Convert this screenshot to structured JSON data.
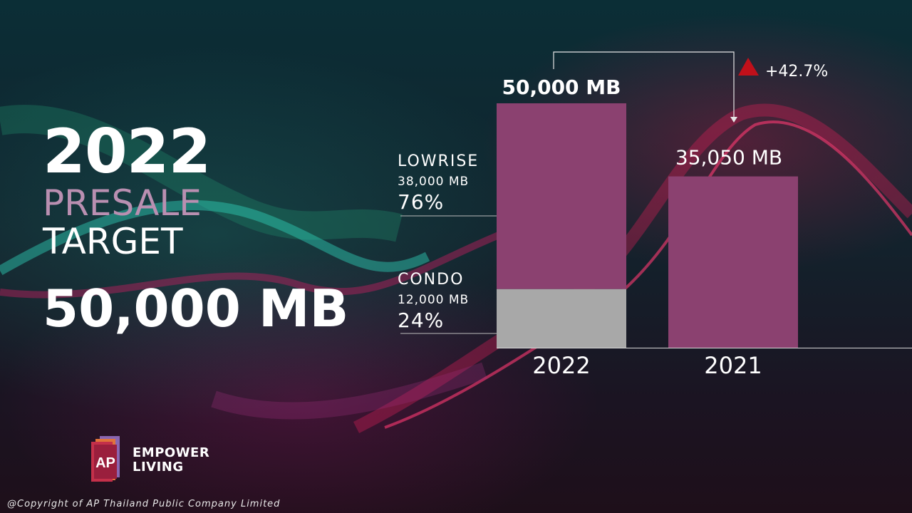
{
  "headline": {
    "year": "2022",
    "line1": "PRESALE",
    "line2": "TARGET",
    "total": "50,000 MB"
  },
  "chart_data": {
    "type": "bar",
    "categories": [
      "2022",
      "2021"
    ],
    "series": [
      {
        "name": "CONDO",
        "values": [
          12000,
          0
        ],
        "color": "#a8a8a8"
      },
      {
        "name": "LOWRISE",
        "values": [
          38000,
          35050
        ],
        "color": "#8b4170"
      }
    ],
    "total_labels": [
      "50,000 MB",
      "35,050 MB"
    ],
    "segment_labels": [
      {
        "name": "LOWRISE",
        "value": "38,000 MB",
        "percent": "76%"
      },
      {
        "name": "CONDO",
        "value": "12,000 MB",
        "percent": "24%"
      }
    ],
    "growth": {
      "label": "+42.7%",
      "color": "#c0101a"
    },
    "ylim": [
      0,
      50000
    ]
  },
  "brand": {
    "logo_text": "AP",
    "line1": "EMPOWER",
    "line2": "LIVING"
  },
  "copyright": "@Copyright  of AP Thailand Public Company  Limited"
}
